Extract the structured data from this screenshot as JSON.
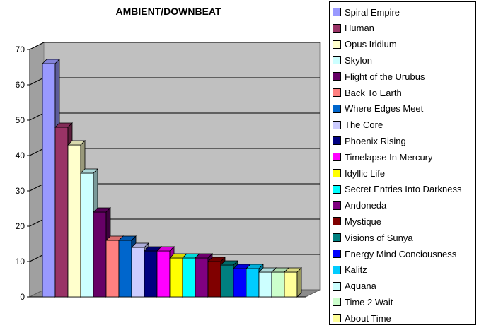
{
  "chart_data": {
    "type": "bar",
    "title": "AMBIENT/DOWNBEAT",
    "xlabel": "",
    "ylabel": "",
    "ylim": [
      0,
      70
    ],
    "yticks": [
      0,
      10,
      20,
      30,
      40,
      50,
      60,
      70
    ],
    "grid": true,
    "legend_position": "right",
    "series": [
      {
        "name": "Spiral Empire",
        "value": 66,
        "color": "#9999ff"
      },
      {
        "name": "Human",
        "value": 48,
        "color": "#993366"
      },
      {
        "name": "Opus Iridium",
        "value": 43,
        "color": "#ffffcc"
      },
      {
        "name": "Skylon",
        "value": 35,
        "color": "#ccffff"
      },
      {
        "name": "Flight of the Urubus",
        "value": 24,
        "color": "#660066"
      },
      {
        "name": "Back To Earth",
        "value": 16,
        "color": "#ff8080"
      },
      {
        "name": "Where Edges Meet",
        "value": 16,
        "color": "#0066cc"
      },
      {
        "name": "The Core",
        "value": 14,
        "color": "#ccccff"
      },
      {
        "name": "Phoenix Rising",
        "value": 13,
        "color": "#000080"
      },
      {
        "name": "Timelapse In Mercury",
        "value": 13,
        "color": "#ff00ff"
      },
      {
        "name": "Idyllic Life",
        "value": 11,
        "color": "#ffff00"
      },
      {
        "name": "Secret Entries Into Darkness",
        "value": 11,
        "color": "#00ffff"
      },
      {
        "name": "Andoneda",
        "value": 11,
        "color": "#800080"
      },
      {
        "name": "Mystique",
        "value": 10,
        "color": "#800000"
      },
      {
        "name": "Visions of Sunya",
        "value": 9,
        "color": "#008080"
      },
      {
        "name": "Energy Mind Conciousness",
        "value": 8,
        "color": "#0000ff"
      },
      {
        "name": "Kalitz",
        "value": 8,
        "color": "#00ccff"
      },
      {
        "name": "Aquana",
        "value": 7,
        "color": "#ccffff"
      },
      {
        "name": "Time 2 Wait",
        "value": 7,
        "color": "#ccffcc"
      },
      {
        "name": "About Time",
        "value": 7,
        "color": "#ffff99"
      }
    ]
  }
}
